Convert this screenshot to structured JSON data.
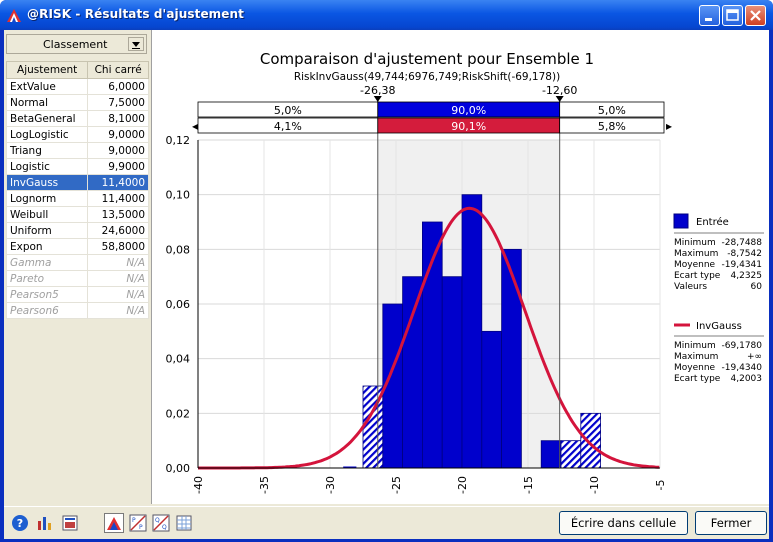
{
  "window": {
    "title": "@RISK - Résultats d'ajustement"
  },
  "sidebar": {
    "ranking_label": "Classement",
    "columns": [
      "Ajustement",
      "Chi carré"
    ],
    "rows": [
      {
        "name": "ExtValue",
        "value": "6,0000",
        "state": "normal"
      },
      {
        "name": "Normal",
        "value": "7,5000",
        "state": "normal"
      },
      {
        "name": "BetaGeneral",
        "value": "8,1000",
        "state": "normal"
      },
      {
        "name": "LogLogistic",
        "value": "9,0000",
        "state": "normal"
      },
      {
        "name": "Triang",
        "value": "9,0000",
        "state": "normal"
      },
      {
        "name": "Logistic",
        "value": "9,9000",
        "state": "normal"
      },
      {
        "name": "InvGauss",
        "value": "11,4000",
        "state": "selected"
      },
      {
        "name": "Lognorm",
        "value": "11,4000",
        "state": "normal"
      },
      {
        "name": "Weibull",
        "value": "13,5000",
        "state": "normal"
      },
      {
        "name": "Uniform",
        "value": "24,6000",
        "state": "normal"
      },
      {
        "name": "Expon",
        "value": "58,8000",
        "state": "normal"
      },
      {
        "name": "Gamma",
        "value": "N/A",
        "state": "na"
      },
      {
        "name": "Pareto",
        "value": "N/A",
        "state": "na"
      },
      {
        "name": "Pearson5",
        "value": "N/A",
        "state": "na"
      },
      {
        "name": "Pearson6",
        "value": "N/A",
        "state": "na"
      }
    ]
  },
  "chart_data": {
    "type": "bar",
    "title": "Comparaison d'ajustement pour Ensemble 1",
    "subtitle": "RiskInvGauss(49,744;6976,749;RiskShift(-69,178))",
    "xlim": [
      -40,
      -5
    ],
    "ylim": [
      0,
      0.12
    ],
    "x_ticks": [
      "-40",
      "-35",
      "-30",
      "-25",
      "-20",
      "-15",
      "-10",
      "-5"
    ],
    "y_ticks": [
      "0,00",
      "0,02",
      "0,04",
      "0,06",
      "0,08",
      "0,10",
      "0,12"
    ],
    "histogram": [
      {
        "x0": -29,
        "x1": -28,
        "value": 0.0
      },
      {
        "x0": -27.5,
        "x1": -26,
        "value": 0.03
      },
      {
        "x0": -26,
        "x1": -24.5,
        "value": 0.06
      },
      {
        "x0": -24.5,
        "x1": -23,
        "value": 0.07
      },
      {
        "x0": -23,
        "x1": -21.5,
        "value": 0.09
      },
      {
        "x0": -21.5,
        "x1": -20,
        "value": 0.07
      },
      {
        "x0": -20,
        "x1": -18.5,
        "value": 0.1
      },
      {
        "x0": -18.5,
        "x1": -17,
        "value": 0.05
      },
      {
        "x0": -17,
        "x1": -15.5,
        "value": 0.08
      },
      {
        "x0": -15.5,
        "x1": -14,
        "value": 0.0
      },
      {
        "x0": -14,
        "x1": -12.5,
        "value": 0.01
      },
      {
        "x0": -12.5,
        "x1": -11,
        "value": 0.01
      },
      {
        "x0": -11,
        "x1": -9.5,
        "value": 0.02
      }
    ],
    "curve": {
      "name": "InvGauss",
      "mean": -19.434,
      "sd": 4.2003,
      "peak": 0.095
    },
    "delimiters": {
      "left": -26.38,
      "right": -12.6,
      "left_label": "-26,38",
      "right_label": "-12,60"
    },
    "prob_input": [
      "5,0%",
      "90,0%",
      "5,0%"
    ],
    "prob_fit": [
      "4,1%",
      "90,1%",
      "5,8%"
    ],
    "colors": {
      "bars": "#0000cc",
      "curve": "#d4143c",
      "input_band": "#0000dd",
      "fit_band": "#d41c3c"
    }
  },
  "legend": {
    "input": {
      "label": "Entrée",
      "stats": [
        {
          "k": "Minimum",
          "v": "-28,7488"
        },
        {
          "k": "Maximum",
          "v": "-8,7542"
        },
        {
          "k": "Moyenne",
          "v": "-19,4341"
        },
        {
          "k": "Ecart type",
          "v": "4,2325"
        },
        {
          "k": "Valeurs",
          "v": "60"
        }
      ]
    },
    "fit": {
      "label": "InvGauss",
      "stats": [
        {
          "k": "Minimum",
          "v": "-69,1780"
        },
        {
          "k": "Maximum",
          "v": "+∞"
        },
        {
          "k": "Moyenne",
          "v": "-19,4340"
        },
        {
          "k": "Ecart type",
          "v": "4,2003"
        }
      ]
    }
  },
  "footer": {
    "write_button": "Écrire dans cellule",
    "close_button": "Fermer"
  }
}
